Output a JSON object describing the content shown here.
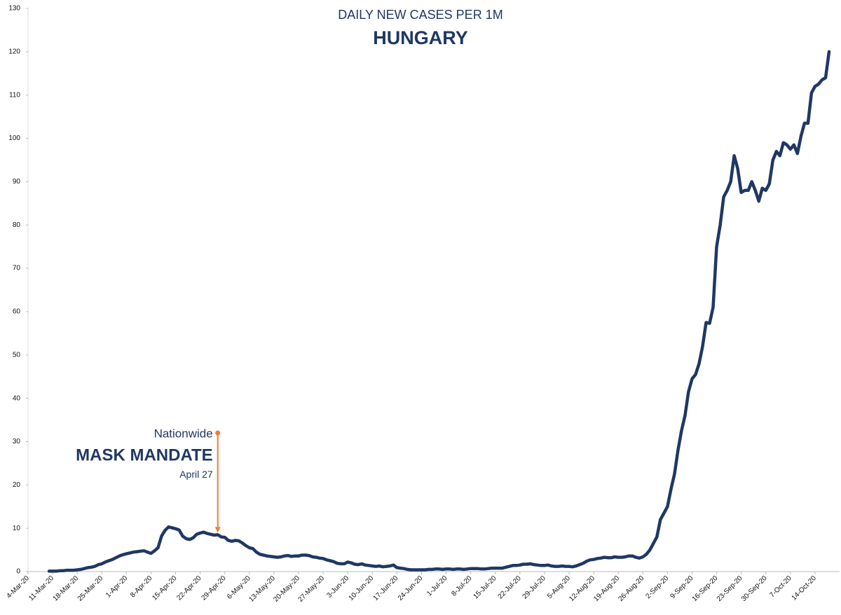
{
  "chart_data": {
    "type": "line",
    "title": "DAILY NEW CASES PER 1M",
    "subtitle": "HUNGARY",
    "color": "#1f3864",
    "ylim": [
      0,
      130
    ],
    "yticks": [
      0,
      10,
      20,
      30,
      40,
      50,
      60,
      70,
      80,
      90,
      100,
      110,
      120,
      130
    ],
    "categories": [
      "4-Mar-20",
      null,
      null,
      null,
      null,
      null,
      null,
      "11-Mar-20",
      null,
      null,
      null,
      null,
      null,
      null,
      "18-Mar-20",
      null,
      null,
      null,
      null,
      null,
      null,
      "25-Mar-20",
      null,
      null,
      null,
      null,
      null,
      null,
      "1-Apr-20",
      null,
      null,
      null,
      null,
      null,
      null,
      "8-Apr-20",
      null,
      null,
      null,
      null,
      null,
      null,
      "15-Apr-20",
      null,
      null,
      null,
      null,
      null,
      null,
      "22-Apr-20",
      null,
      null,
      null,
      null,
      null,
      null,
      "29-Apr-20",
      null,
      null,
      null,
      null,
      null,
      null,
      "6-May-20",
      null,
      null,
      null,
      null,
      null,
      null,
      "13-May-20",
      null,
      null,
      null,
      null,
      null,
      null,
      "20-May-20",
      null,
      null,
      null,
      null,
      null,
      null,
      "27-May-20",
      null,
      null,
      null,
      null,
      null,
      null,
      "3-Jun-20",
      null,
      null,
      null,
      null,
      null,
      null,
      "10-Jun-20",
      null,
      null,
      null,
      null,
      null,
      null,
      "17-Jun-20",
      null,
      null,
      null,
      null,
      null,
      null,
      "24-Jun-20",
      null,
      null,
      null,
      null,
      null,
      null,
      "1-Jul-20",
      null,
      null,
      null,
      null,
      null,
      null,
      "8-Jul-20",
      null,
      null,
      null,
      null,
      null,
      null,
      "15-Jul-20",
      null,
      null,
      null,
      null,
      null,
      null,
      "22-Jul-20",
      null,
      null,
      null,
      null,
      null,
      null,
      "29-Jul-20",
      null,
      null,
      null,
      null,
      null,
      null,
      "5-Aug-20",
      null,
      null,
      null,
      null,
      null,
      null,
      "12-Aug-20",
      null,
      null,
      null,
      null,
      null,
      null,
      "19-Aug-20",
      null,
      null,
      null,
      null,
      null,
      null,
      "26-Aug-20",
      null,
      null,
      null,
      null,
      null,
      null,
      "2-Sep-20",
      null,
      null,
      null,
      null,
      null,
      null,
      "9-Sep-20",
      null,
      null,
      null,
      null,
      null,
      null,
      "16-Sep-20",
      null,
      null,
      null,
      null,
      null,
      null,
      "23-Sep-20",
      null,
      null,
      null,
      null,
      null,
      null,
      "30-Sep-20",
      null,
      null,
      null,
      null,
      null,
      null,
      "7-Oct-20",
      null,
      null,
      null,
      null,
      null,
      null,
      "14-Oct-20",
      null,
      null,
      null,
      null
    ],
    "values": [
      null,
      null,
      null,
      null,
      null,
      null,
      0.1,
      0.1,
      0.1,
      0.2,
      0.2,
      0.3,
      0.3,
      0.3,
      0.4,
      0.5,
      0.7,
      0.9,
      1.0,
      1.2,
      1.6,
      1.8,
      2.2,
      2.5,
      2.8,
      3.2,
      3.6,
      3.9,
      4.1,
      4.3,
      4.5,
      4.6,
      4.7,
      4.8,
      4.5,
      4.2,
      4.8,
      5.5,
      8.2,
      9.5,
      10.3,
      10.1,
      9.9,
      9.6,
      8.2,
      7.6,
      7.4,
      7.8,
      8.6,
      8.9,
      9.1,
      8.8,
      8.6,
      8.4,
      8.5,
      8.0,
      7.9,
      7.2,
      7.0,
      7.2,
      7.1,
      6.6,
      6.0,
      5.5,
      5.3,
      4.5,
      4.0,
      3.8,
      3.6,
      3.5,
      3.4,
      3.3,
      3.4,
      3.6,
      3.7,
      3.5,
      3.6,
      3.6,
      3.8,
      3.8,
      3.7,
      3.4,
      3.3,
      3.1,
      3.0,
      2.7,
      2.5,
      2.3,
      1.9,
      1.8,
      1.8,
      2.2,
      2.0,
      1.7,
      1.6,
      1.8,
      1.5,
      1.4,
      1.3,
      1.2,
      1.3,
      1.1,
      1.2,
      1.3,
      1.5,
      0.9,
      0.8,
      0.7,
      0.5,
      0.4,
      0.4,
      0.4,
      0.4,
      0.4,
      0.5,
      0.5,
      0.6,
      0.6,
      0.5,
      0.6,
      0.6,
      0.5,
      0.6,
      0.6,
      0.5,
      0.6,
      0.7,
      0.7,
      0.7,
      0.6,
      0.6,
      0.7,
      0.8,
      0.8,
      0.8,
      0.8,
      1.0,
      1.2,
      1.4,
      1.4,
      1.5,
      1.7,
      1.7,
      1.8,
      1.6,
      1.5,
      1.4,
      1.4,
      1.5,
      1.3,
      1.2,
      1.2,
      1.3,
      1.2,
      1.2,
      1.1,
      1.3,
      1.6,
      1.9,
      2.4,
      2.7,
      2.8,
      3.0,
      3.1,
      3.3,
      3.2,
      3.2,
      3.4,
      3.3,
      3.3,
      3.4,
      3.6,
      3.6,
      3.3,
      3.1,
      3.4,
      4.0,
      5.0,
      6.5,
      8.0,
      12.0,
      13.5,
      15.0,
      19.0,
      22.5,
      28.0,
      32.5,
      36.0,
      41.5,
      44.5,
      45.5,
      48.0,
      52.0,
      57.5,
      57.3,
      61.0,
      75.0,
      80.0,
      86.5,
      88.0,
      90.0,
      96.0,
      93.0,
      87.5,
      88.0,
      88.0,
      90.0,
      88.0,
      85.5,
      88.5,
      88.0,
      89.5,
      95.0,
      97.0,
      96.0,
      99.0,
      98.5,
      97.5,
      98.5,
      96.5,
      100.5,
      103.5,
      103.5,
      110.5,
      112.0,
      112.5,
      113.5,
      114.0,
      120.0
    ],
    "annotation": {
      "lines": [
        "Nationwide",
        "MASK MANDATE",
        "April 27"
      ],
      "at": 54,
      "y_from": 32,
      "y_to": 9,
      "color": "#ed7d31"
    }
  }
}
